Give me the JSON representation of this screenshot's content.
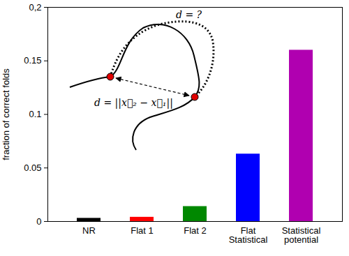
{
  "chart_data": {
    "type": "bar",
    "categories": [
      "NR",
      "Flat 1",
      "Flat 2",
      "Flat\nStatistical",
      "Statistical\npotential"
    ],
    "values": [
      0.003,
      0.004,
      0.014,
      0.063,
      0.16
    ],
    "colors": [
      "#000000",
      "#ff0000",
      "#008800",
      "#0000ff",
      "#b000b0"
    ],
    "y_label": "fraction of correct folds",
    "ylim": [
      0,
      0.2
    ],
    "yticks": [
      0,
      0.05,
      0.1,
      0.15,
      {
        "value": 0.2,
        "label": "0,2"
      }
    ],
    "grid": false,
    "annotations": [
      "d = ?",
      "d = ||x⃗₂ − x⃗₁||"
    ]
  }
}
